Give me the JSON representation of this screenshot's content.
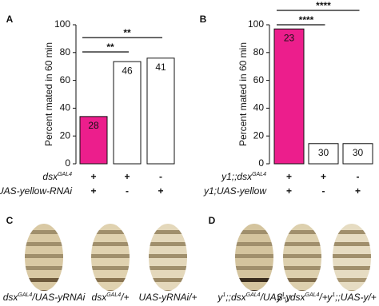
{
  "chart_data": [
    {
      "type": "bar",
      "panel_label": "A",
      "ylabel": "Percent mated in 60 min",
      "values": [
        34,
        73.5,
        76
      ],
      "n_labels": [
        "28",
        "46",
        "41"
      ],
      "colors": [
        "#ec1e8c",
        "#ffffff",
        "#ffffff"
      ],
      "ylim": [
        0,
        100
      ],
      "yticks": [
        0,
        20,
        40,
        60,
        80,
        100
      ],
      "comparisons": [
        {
          "from": 0,
          "to": 2,
          "label": "**"
        },
        {
          "from": 0,
          "to": 1,
          "label": "**"
        }
      ],
      "genotype_rows": [
        {
          "label": [
            {
              "t": "dsx"
            },
            {
              "t": "GAL4",
              "sup": true
            }
          ],
          "marks": [
            "+",
            "+",
            "-"
          ]
        },
        {
          "label": [
            {
              "t": "UAS-yellow-RNAi"
            }
          ],
          "marks": [
            "+",
            "-",
            "+"
          ]
        }
      ]
    },
    {
      "type": "bar",
      "panel_label": "B",
      "ylabel": "Percent mated in 60 min",
      "values": [
        97,
        14.5,
        14.5
      ],
      "n_labels": [
        "23",
        "30",
        "30"
      ],
      "colors": [
        "#ec1e8c",
        "#ffffff",
        "#ffffff"
      ],
      "ylim": [
        0,
        100
      ],
      "yticks": [
        0,
        20,
        40,
        60,
        80,
        100
      ],
      "comparisons": [
        {
          "from": 0,
          "to": 2,
          "label": "****"
        },
        {
          "from": 0,
          "to": 1,
          "label": "****"
        }
      ],
      "genotype_rows": [
        {
          "label": [
            {
              "t": "y1;;dsx"
            },
            {
              "t": "GAL4",
              "sup": true
            }
          ],
          "marks": [
            "+",
            "+",
            "-"
          ]
        },
        {
          "label": [
            {
              "t": "y1;UAS-yellow"
            }
          ],
          "marks": [
            "+",
            "-",
            "+"
          ]
        }
      ]
    }
  ],
  "image_panels": [
    {
      "panel_label": "C",
      "captions": [
        [
          {
            "t": "dsx"
          },
          {
            "t": "GAL4",
            "sup": true
          },
          {
            "t": "/UAS-yRNAi"
          }
        ],
        [
          {
            "t": "dsx"
          },
          {
            "t": "GAL4",
            "sup": true
          },
          {
            "t": "/+"
          }
        ],
        [
          {
            "t": "UAS-yRNAi/+"
          }
        ]
      ]
    },
    {
      "panel_label": "D",
      "captions": [
        [
          {
            "t": "y"
          },
          {
            "t": "1",
            "sup": true
          },
          {
            "t": ";;dsx"
          },
          {
            "t": "GAL4",
            "sup": true
          },
          {
            "t": "/UAS-y"
          }
        ],
        [
          {
            "t": "y"
          },
          {
            "t": "1",
            "sup": true
          },
          {
            "t": ";;dsx"
          },
          {
            "t": "GAL4",
            "sup": true
          },
          {
            "t": "/+"
          }
        ],
        [
          {
            "t": "y"
          },
          {
            "t": "1",
            "sup": true
          },
          {
            "t": ";;UAS-y/+"
          }
        ]
      ]
    }
  ]
}
